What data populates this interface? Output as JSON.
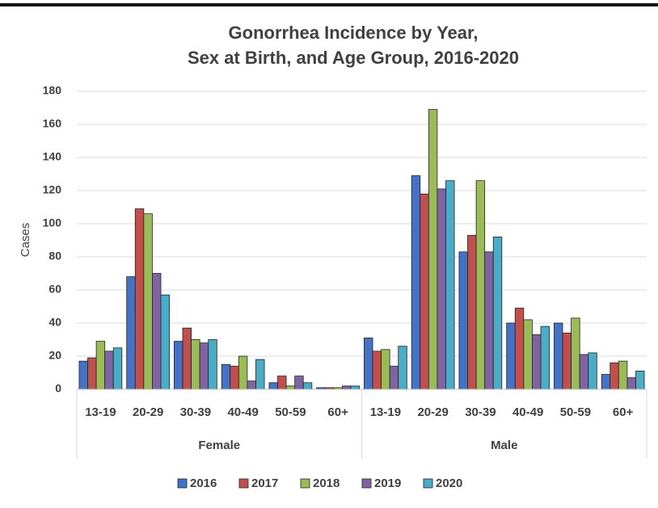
{
  "chart_data": {
    "type": "bar",
    "title": [
      "Gonorrhea Incidence by Year,",
      "Sex at Birth, and Age Group, 2016-2020"
    ],
    "y_label": "Cases",
    "categories": [
      "13-19",
      "20-29",
      "30-39",
      "40-49",
      "50-59",
      "60+",
      "13-19",
      "20-29",
      "30-39",
      "40-49",
      "50-59",
      "60+"
    ],
    "groups": [
      {
        "label": "Female",
        "size": 6
      },
      {
        "label": "Male",
        "size": 6
      }
    ],
    "series": [
      {
        "name": "2016",
        "color": "#4472c4",
        "values": [
          17,
          68,
          29,
          15,
          4,
          1,
          31,
          129,
          83,
          40,
          40,
          9
        ]
      },
      {
        "name": "2017",
        "color": "#c0504d",
        "values": [
          19,
          109,
          37,
          14,
          8,
          1,
          23,
          118,
          93,
          49,
          34,
          16
        ]
      },
      {
        "name": "2018",
        "color": "#9bbb59",
        "values": [
          29,
          106,
          30,
          20,
          2,
          1,
          24,
          169,
          126,
          42,
          43,
          17
        ]
      },
      {
        "name": "2019",
        "color": "#8064a2",
        "values": [
          23,
          70,
          28,
          5,
          8,
          2,
          14,
          121,
          83,
          33,
          21,
          7
        ]
      },
      {
        "name": "2020",
        "color": "#4bacc6",
        "values": [
          25,
          57,
          30,
          18,
          4,
          2,
          26,
          126,
          92,
          38,
          22,
          11
        ]
      }
    ],
    "ylim": [
      0,
      180
    ],
    "yticks": [
      0,
      20,
      40,
      60,
      80,
      100,
      120,
      140,
      160,
      180
    ],
    "grid": true,
    "legend": "bottom"
  }
}
